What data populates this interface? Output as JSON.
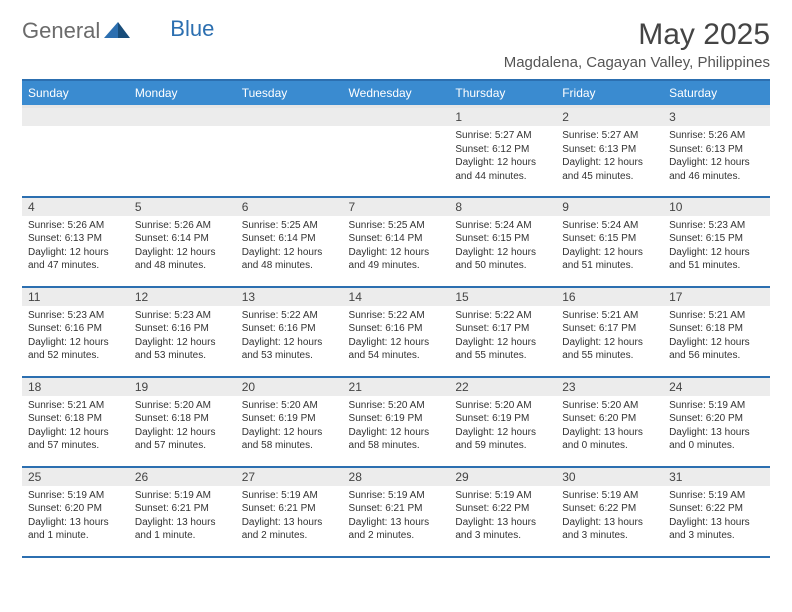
{
  "brand": {
    "part1": "General",
    "part2": "Blue"
  },
  "title": "May 2025",
  "location": "Magdalena, Cagayan Valley, Philippines",
  "colors": {
    "header_bg": "#3a8bd0",
    "border": "#2c6fb0",
    "daynum_bg": "#ececec",
    "text": "#333333"
  },
  "weekdays": [
    "Sunday",
    "Monday",
    "Tuesday",
    "Wednesday",
    "Thursday",
    "Friday",
    "Saturday"
  ],
  "weeks": [
    [
      {
        "n": "",
        "sr": "",
        "ss": "",
        "dl": ""
      },
      {
        "n": "",
        "sr": "",
        "ss": "",
        "dl": ""
      },
      {
        "n": "",
        "sr": "",
        "ss": "",
        "dl": ""
      },
      {
        "n": "",
        "sr": "",
        "ss": "",
        "dl": ""
      },
      {
        "n": "1",
        "sr": "Sunrise: 5:27 AM",
        "ss": "Sunset: 6:12 PM",
        "dl": "Daylight: 12 hours and 44 minutes."
      },
      {
        "n": "2",
        "sr": "Sunrise: 5:27 AM",
        "ss": "Sunset: 6:13 PM",
        "dl": "Daylight: 12 hours and 45 minutes."
      },
      {
        "n": "3",
        "sr": "Sunrise: 5:26 AM",
        "ss": "Sunset: 6:13 PM",
        "dl": "Daylight: 12 hours and 46 minutes."
      }
    ],
    [
      {
        "n": "4",
        "sr": "Sunrise: 5:26 AM",
        "ss": "Sunset: 6:13 PM",
        "dl": "Daylight: 12 hours and 47 minutes."
      },
      {
        "n": "5",
        "sr": "Sunrise: 5:26 AM",
        "ss": "Sunset: 6:14 PM",
        "dl": "Daylight: 12 hours and 48 minutes."
      },
      {
        "n": "6",
        "sr": "Sunrise: 5:25 AM",
        "ss": "Sunset: 6:14 PM",
        "dl": "Daylight: 12 hours and 48 minutes."
      },
      {
        "n": "7",
        "sr": "Sunrise: 5:25 AM",
        "ss": "Sunset: 6:14 PM",
        "dl": "Daylight: 12 hours and 49 minutes."
      },
      {
        "n": "8",
        "sr": "Sunrise: 5:24 AM",
        "ss": "Sunset: 6:15 PM",
        "dl": "Daylight: 12 hours and 50 minutes."
      },
      {
        "n": "9",
        "sr": "Sunrise: 5:24 AM",
        "ss": "Sunset: 6:15 PM",
        "dl": "Daylight: 12 hours and 51 minutes."
      },
      {
        "n": "10",
        "sr": "Sunrise: 5:23 AM",
        "ss": "Sunset: 6:15 PM",
        "dl": "Daylight: 12 hours and 51 minutes."
      }
    ],
    [
      {
        "n": "11",
        "sr": "Sunrise: 5:23 AM",
        "ss": "Sunset: 6:16 PM",
        "dl": "Daylight: 12 hours and 52 minutes."
      },
      {
        "n": "12",
        "sr": "Sunrise: 5:23 AM",
        "ss": "Sunset: 6:16 PM",
        "dl": "Daylight: 12 hours and 53 minutes."
      },
      {
        "n": "13",
        "sr": "Sunrise: 5:22 AM",
        "ss": "Sunset: 6:16 PM",
        "dl": "Daylight: 12 hours and 53 minutes."
      },
      {
        "n": "14",
        "sr": "Sunrise: 5:22 AM",
        "ss": "Sunset: 6:16 PM",
        "dl": "Daylight: 12 hours and 54 minutes."
      },
      {
        "n": "15",
        "sr": "Sunrise: 5:22 AM",
        "ss": "Sunset: 6:17 PM",
        "dl": "Daylight: 12 hours and 55 minutes."
      },
      {
        "n": "16",
        "sr": "Sunrise: 5:21 AM",
        "ss": "Sunset: 6:17 PM",
        "dl": "Daylight: 12 hours and 55 minutes."
      },
      {
        "n": "17",
        "sr": "Sunrise: 5:21 AM",
        "ss": "Sunset: 6:18 PM",
        "dl": "Daylight: 12 hours and 56 minutes."
      }
    ],
    [
      {
        "n": "18",
        "sr": "Sunrise: 5:21 AM",
        "ss": "Sunset: 6:18 PM",
        "dl": "Daylight: 12 hours and 57 minutes."
      },
      {
        "n": "19",
        "sr": "Sunrise: 5:20 AM",
        "ss": "Sunset: 6:18 PM",
        "dl": "Daylight: 12 hours and 57 minutes."
      },
      {
        "n": "20",
        "sr": "Sunrise: 5:20 AM",
        "ss": "Sunset: 6:19 PM",
        "dl": "Daylight: 12 hours and 58 minutes."
      },
      {
        "n": "21",
        "sr": "Sunrise: 5:20 AM",
        "ss": "Sunset: 6:19 PM",
        "dl": "Daylight: 12 hours and 58 minutes."
      },
      {
        "n": "22",
        "sr": "Sunrise: 5:20 AM",
        "ss": "Sunset: 6:19 PM",
        "dl": "Daylight: 12 hours and 59 minutes."
      },
      {
        "n": "23",
        "sr": "Sunrise: 5:20 AM",
        "ss": "Sunset: 6:20 PM",
        "dl": "Daylight: 13 hours and 0 minutes."
      },
      {
        "n": "24",
        "sr": "Sunrise: 5:19 AM",
        "ss": "Sunset: 6:20 PM",
        "dl": "Daylight: 13 hours and 0 minutes."
      }
    ],
    [
      {
        "n": "25",
        "sr": "Sunrise: 5:19 AM",
        "ss": "Sunset: 6:20 PM",
        "dl": "Daylight: 13 hours and 1 minute."
      },
      {
        "n": "26",
        "sr": "Sunrise: 5:19 AM",
        "ss": "Sunset: 6:21 PM",
        "dl": "Daylight: 13 hours and 1 minute."
      },
      {
        "n": "27",
        "sr": "Sunrise: 5:19 AM",
        "ss": "Sunset: 6:21 PM",
        "dl": "Daylight: 13 hours and 2 minutes."
      },
      {
        "n": "28",
        "sr": "Sunrise: 5:19 AM",
        "ss": "Sunset: 6:21 PM",
        "dl": "Daylight: 13 hours and 2 minutes."
      },
      {
        "n": "29",
        "sr": "Sunrise: 5:19 AM",
        "ss": "Sunset: 6:22 PM",
        "dl": "Daylight: 13 hours and 3 minutes."
      },
      {
        "n": "30",
        "sr": "Sunrise: 5:19 AM",
        "ss": "Sunset: 6:22 PM",
        "dl": "Daylight: 13 hours and 3 minutes."
      },
      {
        "n": "31",
        "sr": "Sunrise: 5:19 AM",
        "ss": "Sunset: 6:22 PM",
        "dl": "Daylight: 13 hours and 3 minutes."
      }
    ]
  ]
}
